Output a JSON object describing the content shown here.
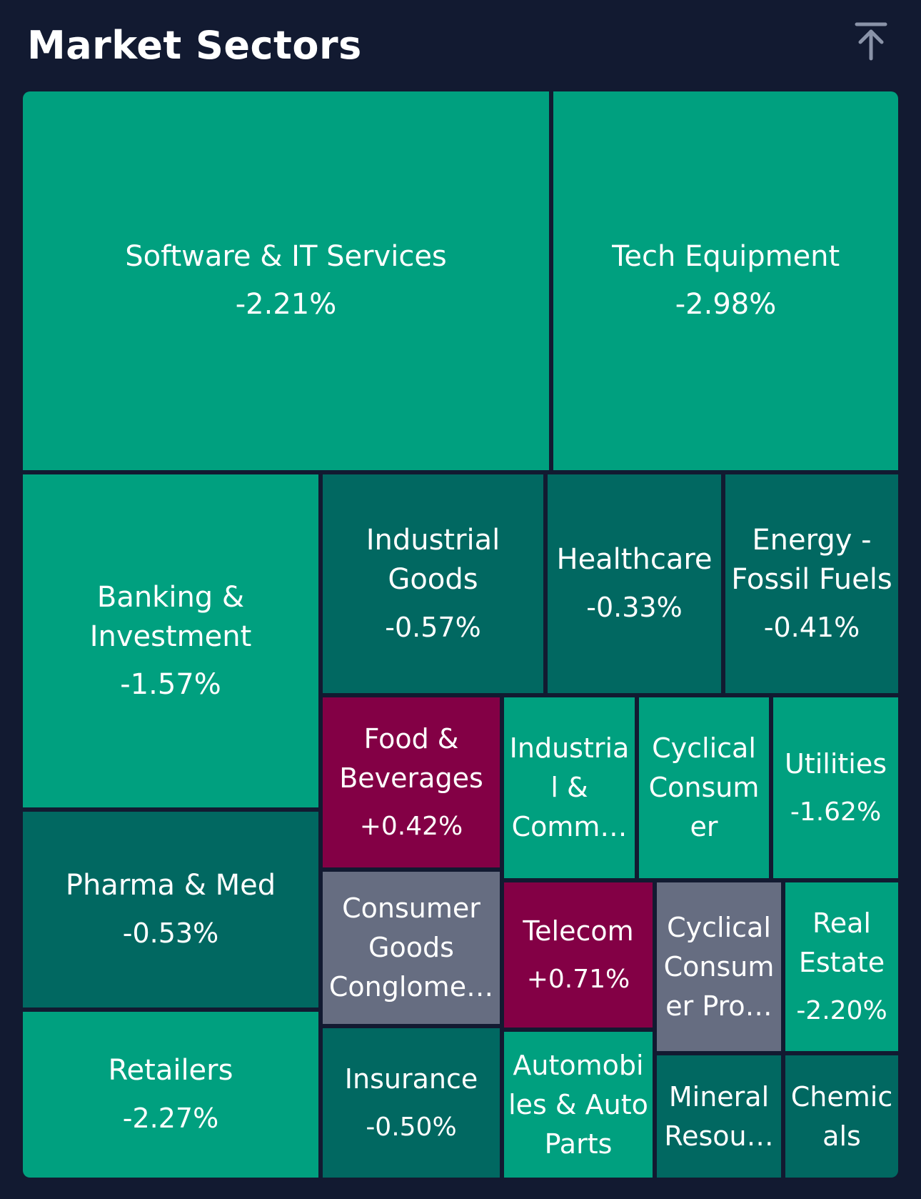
{
  "header": {
    "title": "Market Sectors",
    "collapse_icon": "arrow-up-to-top-icon"
  },
  "colors": {
    "background": "#121a31",
    "strong_green": "#00a07f",
    "muted_green": "#016861",
    "gain_red": "#830045",
    "neutral_gray": "#666d81"
  },
  "sectors": [
    {
      "name": "Software & IT Services",
      "change": "-2.21%",
      "tone": "strong"
    },
    {
      "name": "Tech Equipment",
      "change": "-2.98%",
      "tone": "strong"
    },
    {
      "name": "Banking &\nInvestment",
      "change": "-1.57%",
      "tone": "strong"
    },
    {
      "name": "Industrial\nGoods",
      "change": "-0.57%",
      "tone": "muted"
    },
    {
      "name": "Healthcare",
      "change": "-0.33%",
      "tone": "muted"
    },
    {
      "name": "Energy -\nFossil Fuels",
      "change": "-0.41%",
      "tone": "muted"
    },
    {
      "name": "Pharma & Med",
      "change": "-0.53%",
      "tone": "muted"
    },
    {
      "name": "Retailers",
      "change": "-2.27%",
      "tone": "strong"
    },
    {
      "name": "Food &\nBeverages",
      "change": "+0.42%",
      "tone": "gain"
    },
    {
      "name": "Industria\nl &\nComm…",
      "change": "",
      "tone": "strong"
    },
    {
      "name": "Cyclical\nConsum\ner",
      "change": "",
      "tone": "strong"
    },
    {
      "name": "Utilities",
      "change": "-1.62%",
      "tone": "strong"
    },
    {
      "name": "Consumer\nGoods\nConglome…",
      "change": "",
      "tone": "neutral"
    },
    {
      "name": "Telecom",
      "change": "+0.71%",
      "tone": "gain"
    },
    {
      "name": "Cyclical\nConsum\ner Pro…",
      "change": "",
      "tone": "neutral"
    },
    {
      "name": "Real\nEstate",
      "change": "-2.20%",
      "tone": "strong"
    },
    {
      "name": "Insurance",
      "change": "-0.50%",
      "tone": "muted"
    },
    {
      "name": "Automobi\nles & Auto\nParts",
      "change": "",
      "tone": "strong"
    },
    {
      "name": "Mineral\nResou…",
      "change": "",
      "tone": "muted"
    },
    {
      "name": "Chemic\nals",
      "change": "",
      "tone": "muted"
    }
  ]
}
